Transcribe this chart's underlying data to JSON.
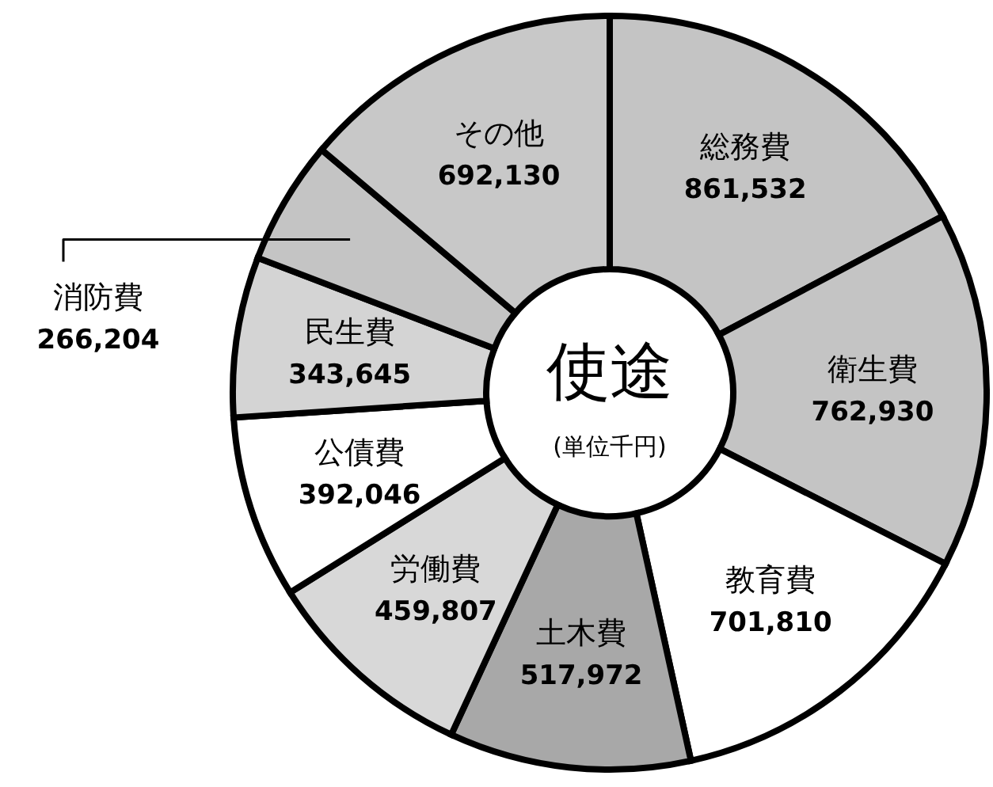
{
  "chart_data": {
    "type": "donut",
    "title": "使途",
    "subtitle": "(単位千円)",
    "categories": [
      "総務費",
      "衛生費",
      "教育費",
      "土木費",
      "労働費",
      "公債費",
      "民生費",
      "消防費",
      "その他"
    ],
    "values": [
      861532,
      762930,
      701810,
      517972,
      459807,
      392046,
      343645,
      266204,
      692130
    ],
    "value_labels": [
      "861,532",
      "762,930",
      "701,810",
      "517,972",
      "459,807",
      "392,046",
      "343,645",
      "266,204",
      "692,130"
    ],
    "colors": [
      "#c4c4c4",
      "#c4c4c4",
      "#ffffff",
      "#a8a8a8",
      "#d8d8d8",
      "#ffffff",
      "#d4d4d4",
      "#c4c4c4",
      "#c8c8c8"
    ]
  }
}
